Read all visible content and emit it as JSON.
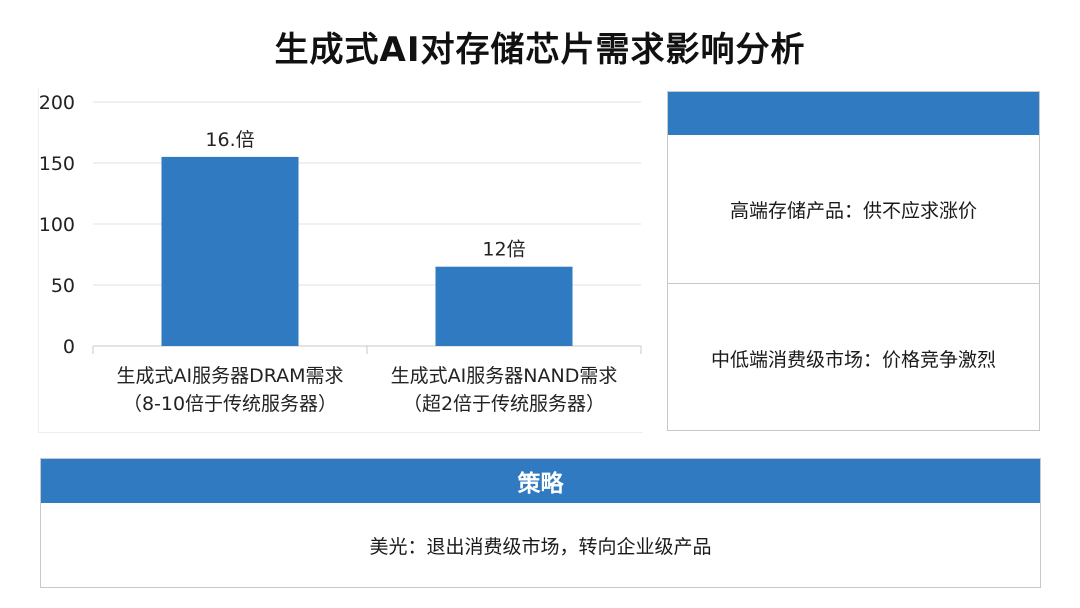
{
  "title": "生成式AI对存储芯片需求影响分析",
  "chart_data": {
    "type": "bar",
    "categories": [
      [
        "生成式AI服务器DRAM需求",
        "（8-10倍于传统服务器）"
      ],
      [
        "生成式AI服务器NAND需求",
        "（超2倍于传统服务器）"
      ]
    ],
    "values": [
      155,
      65
    ],
    "data_labels": [
      "16.倍",
      "12倍"
    ],
    "y_ticks": [
      0,
      50,
      100,
      150,
      200
    ],
    "ylim": [
      0,
      200
    ],
    "grid": true,
    "bar_color": "#2f7ac0"
  },
  "impact_panel": {
    "items": [
      "高端存储产品：供不应求涨价",
      "中低端消费级市场：价格竞争激烈"
    ]
  },
  "strategy": {
    "header": "策略",
    "text": "美光：退出消费级市场，转向企业级产品"
  }
}
